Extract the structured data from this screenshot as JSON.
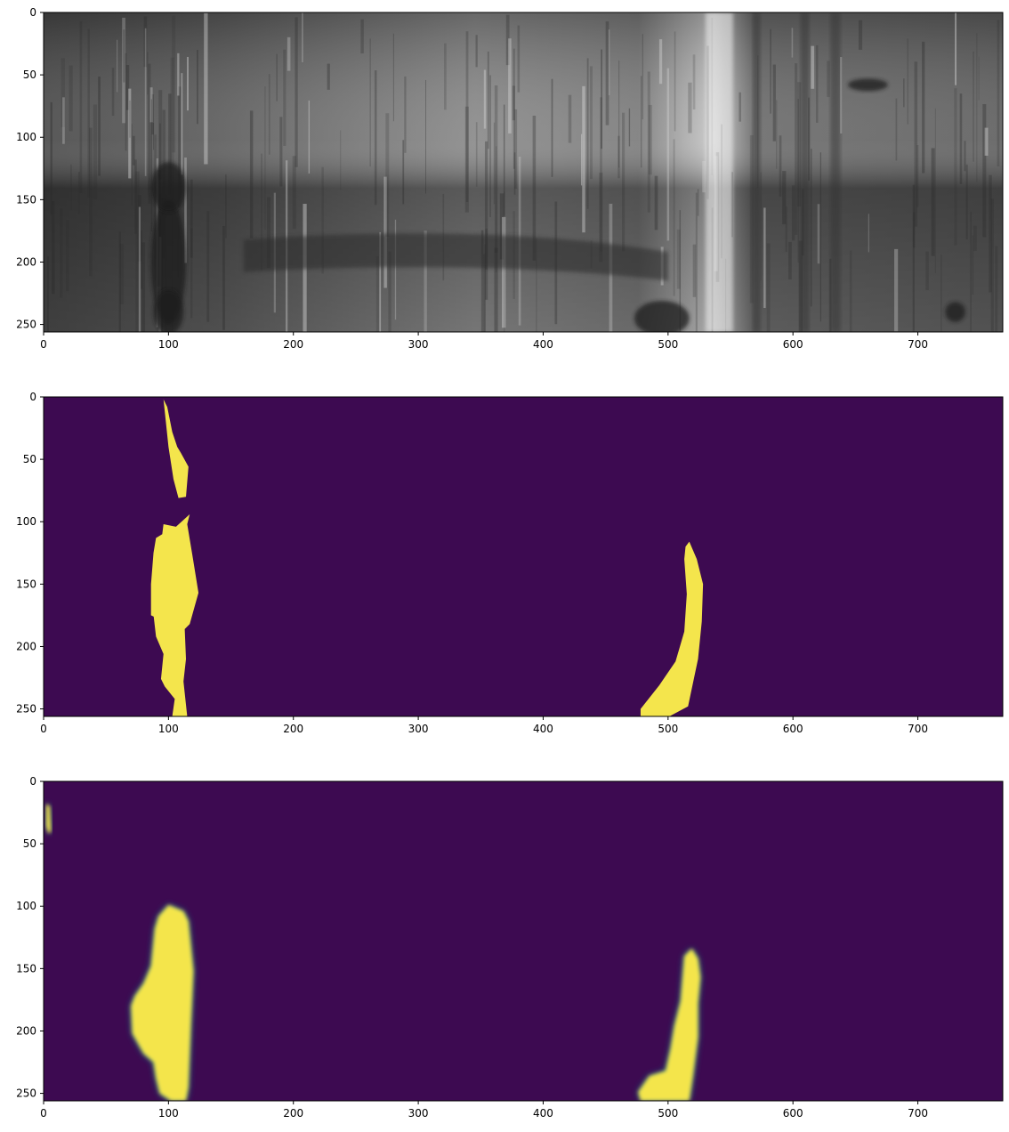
{
  "figure": {
    "layout": "three vertically stacked image panels"
  },
  "colors": {
    "viridis_low": "#440154",
    "viridis_bg": "#3d0a51",
    "viridis_high": "#f4e54c",
    "viridis_mid": "#21918c",
    "viridis_lowmid": "#3b528b",
    "frame": "#000000",
    "gray_base": "#6f6f6f"
  },
  "chart_data": [
    {
      "type": "heatmap",
      "title": "",
      "xlabel": "",
      "ylabel": "",
      "content": "grayscale photograph of a steel surface with defects",
      "colormap": "gray",
      "xlim": [
        0,
        768
      ],
      "ylim": [
        256,
        0
      ],
      "x_ticks": [
        0,
        100,
        200,
        300,
        400,
        500,
        600,
        700
      ],
      "y_ticks": [
        0,
        50,
        100,
        150,
        200,
        250
      ],
      "grid": false
    },
    {
      "type": "heatmap",
      "title": "",
      "xlabel": "",
      "ylabel": "",
      "content": "binary mask",
      "colormap": "viridis",
      "xlim": [
        0,
        768
      ],
      "ylim": [
        256,
        0
      ],
      "x_ticks": [
        0,
        100,
        200,
        300,
        400,
        500,
        600,
        700
      ],
      "y_ticks": [
        0,
        50,
        100,
        150,
        200,
        250
      ],
      "grid": false,
      "regions": [
        {
          "x": [
            96,
            99,
            103,
            107,
            110,
            116,
            114,
            108,
            104,
            100
          ],
          "y": [
            2,
            8,
            28,
            40,
            45,
            56,
            80,
            81,
            66,
            40
          ]
        },
        {
          "x": [
            96,
            106,
            117,
            115,
            119,
            124,
            117,
            113,
            114,
            112,
            115,
            103,
            105,
            97,
            94,
            96,
            90,
            87,
            89,
            96,
            86,
            86,
            88,
            90,
            95
          ],
          "y": [
            102,
            104,
            94,
            102,
            126,
            157,
            182,
            186,
            210,
            228,
            256,
            256,
            242,
            232,
            226,
            206,
            192,
            166,
            172,
            180,
            175,
            150,
            125,
            113,
            110
          ]
        },
        {
          "x": [
            514,
            517,
            523,
            528,
            527,
            524,
            516,
            501,
            478,
            478,
            493,
            506,
            513,
            515,
            513
          ],
          "y": [
            120,
            116,
            130,
            150,
            180,
            210,
            248,
            256,
            256,
            250,
            231,
            212,
            188,
            158,
            130
          ]
        }
      ]
    },
    {
      "type": "heatmap",
      "title": "",
      "xlabel": "",
      "ylabel": "",
      "content": "predicted probability map",
      "colormap": "viridis",
      "xlim": [
        0,
        768
      ],
      "ylim": [
        256,
        0
      ],
      "x_ticks": [
        0,
        100,
        200,
        300,
        400,
        500,
        600,
        700
      ],
      "y_ticks": [
        0,
        50,
        100,
        150,
        200,
        250
      ],
      "grid": false,
      "regions": [
        {
          "x": [
            2,
            5,
            6,
            4,
            2
          ],
          "y": [
            18,
            20,
            40,
            42,
            36
          ]
        },
        {
          "x": [
            92,
            100,
            112,
            116,
            120,
            118,
            116,
            114,
            102,
            93,
            90,
            88,
            80,
            71,
            70,
            73,
            80,
            86,
            89
          ],
          "y": [
            108,
            99,
            104,
            112,
            152,
            195,
            245,
            256,
            256,
            250,
            238,
            225,
            218,
            202,
            180,
            172,
            162,
            148,
            118
          ]
        },
        {
          "x": [
            513,
            519,
            524,
            526,
            524,
            524,
            520,
            517,
            500,
            478,
            476,
            485,
            498,
            502,
            505,
            510
          ],
          "y": [
            140,
            134,
            142,
            157,
            178,
            205,
            236,
            256,
            256,
            256,
            249,
            236,
            232,
            214,
            196,
            176
          ]
        }
      ]
    }
  ]
}
